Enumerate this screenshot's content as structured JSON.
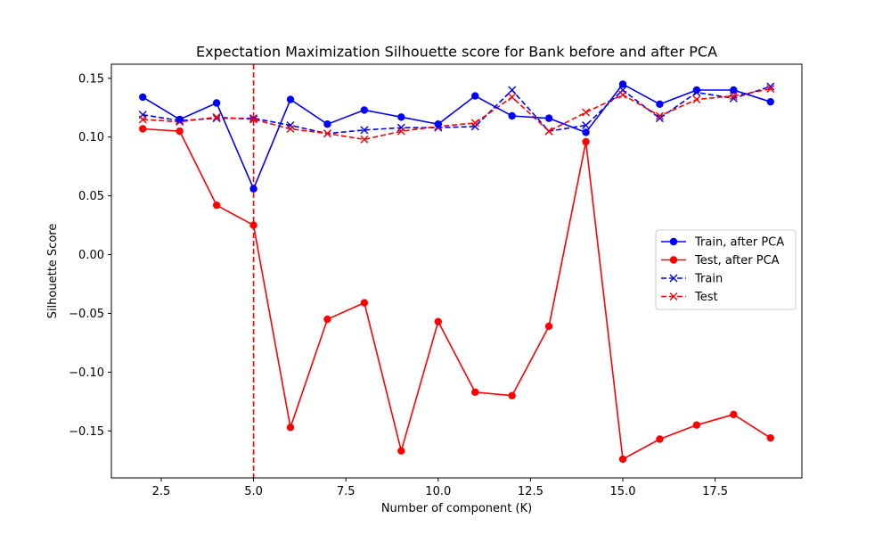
{
  "chart_data": {
    "type": "line",
    "title": "Expectation Maximization Silhouette score for Bank before and after PCA",
    "xlabel": "Number of component (K)",
    "ylabel": "Silhouette Score",
    "xlim": [
      1.15,
      19.85
    ],
    "ylim": [
      -0.19,
      0.162
    ],
    "xticks": [
      2.5,
      5.0,
      7.5,
      10.0,
      12.5,
      15.0,
      17.5
    ],
    "xtick_labels": [
      "2.5",
      "5.0",
      "7.5",
      "10.0",
      "12.5",
      "15.0",
      "17.5"
    ],
    "yticks": [
      -0.15,
      -0.1,
      -0.05,
      0.0,
      0.05,
      0.1,
      0.15
    ],
    "ytick_labels": [
      "−0.15",
      "−0.10",
      "−0.05",
      "0.00",
      "0.05",
      "0.10",
      "0.15"
    ],
    "grid": false,
    "legend_position": "center-right",
    "x": [
      2,
      3,
      4,
      5,
      6,
      7,
      8,
      9,
      10,
      11,
      12,
      13,
      14,
      15,
      16,
      17,
      18,
      19
    ],
    "vline": {
      "x": 5,
      "color": "#ff0000",
      "style": "dashed"
    },
    "series": [
      {
        "name": "Train, after PCA",
        "color": "#0000ff",
        "linestyle": "solid",
        "marker": "o",
        "values": [
          0.134,
          0.115,
          0.129,
          0.056,
          0.132,
          0.111,
          0.123,
          0.117,
          0.111,
          0.135,
          0.118,
          0.116,
          0.104,
          0.145,
          0.128,
          0.14,
          0.14,
          0.13
        ]
      },
      {
        "name": "Test, after PCA",
        "color": "#ff0000",
        "linestyle": "solid",
        "marker": "o",
        "values": [
          0.107,
          0.105,
          0.042,
          0.025,
          -0.147,
          -0.055,
          -0.041,
          -0.167,
          -0.057,
          -0.117,
          -0.12,
          -0.061,
          0.096,
          -0.174,
          -0.157,
          -0.145,
          -0.136,
          -0.156
        ]
      },
      {
        "name": "Train",
        "color": "#0000ff",
        "linestyle": "dashed",
        "marker": "x",
        "values": [
          0.119,
          0.114,
          0.116,
          0.116,
          0.11,
          0.103,
          0.106,
          0.108,
          0.108,
          0.109,
          0.14,
          0.105,
          0.11,
          0.14,
          0.116,
          0.138,
          0.133,
          0.143
        ]
      },
      {
        "name": "Test",
        "color": "#ff0000",
        "linestyle": "dashed",
        "marker": "x",
        "values": [
          0.115,
          0.113,
          0.117,
          0.115,
          0.107,
          0.103,
          0.098,
          0.105,
          0.109,
          0.112,
          0.134,
          0.105,
          0.121,
          0.136,
          0.118,
          0.132,
          0.135,
          0.141
        ]
      }
    ]
  }
}
